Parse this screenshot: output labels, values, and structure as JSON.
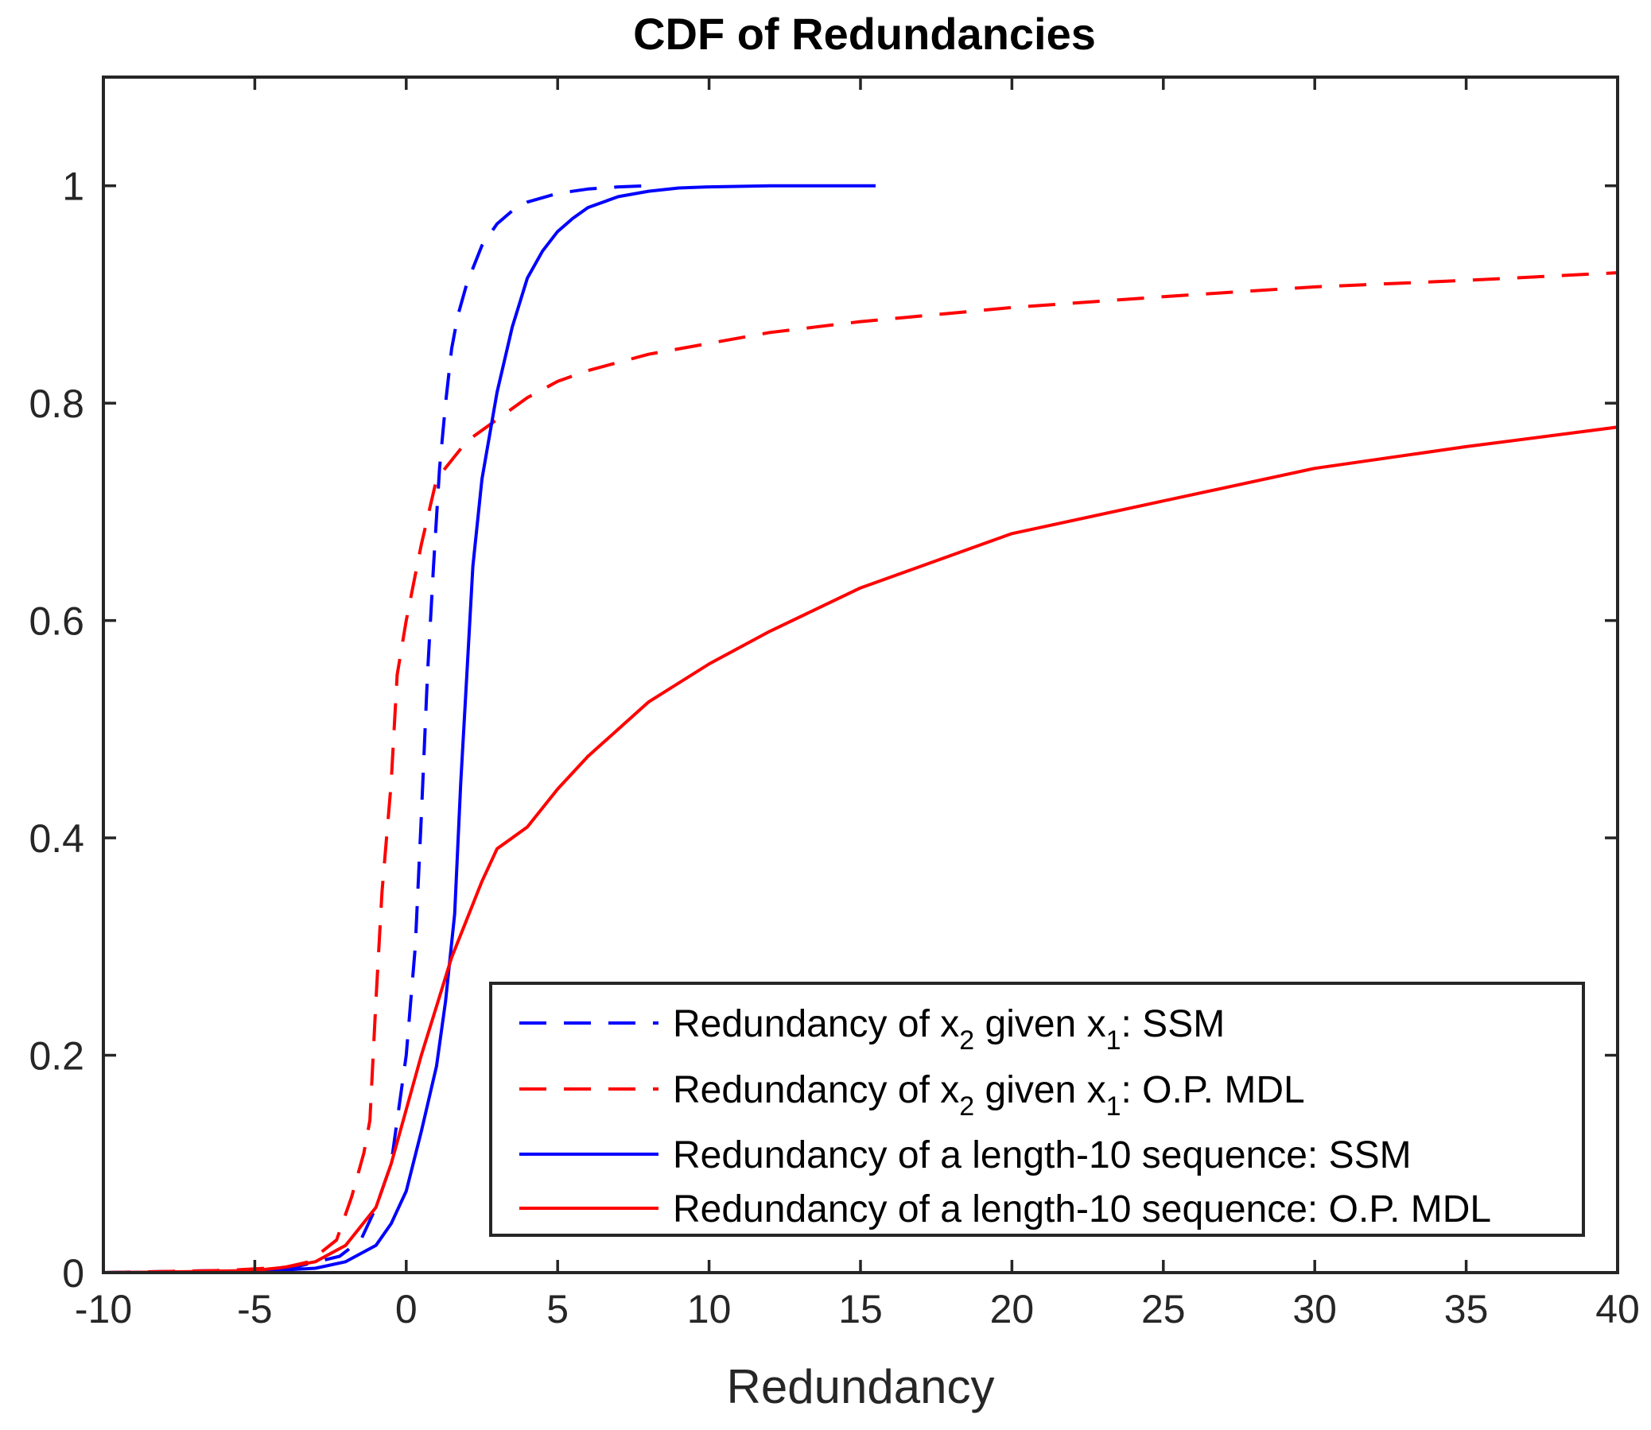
{
  "chart_data": {
    "type": "line",
    "title": "CDF of Redundancies",
    "xlabel": "Redundancy",
    "ylabel": "",
    "xlim": [
      -10,
      40
    ],
    "ylim": [
      0,
      1.1
    ],
    "xticks": [
      -10,
      -5,
      0,
      5,
      10,
      15,
      20,
      25,
      30,
      35,
      40
    ],
    "yticks": [
      0,
      0.2,
      0.4,
      0.6,
      0.8,
      1
    ],
    "xtick_labels": [
      "-10",
      "-5",
      "0",
      "5",
      "10",
      "15",
      "20",
      "25",
      "30",
      "35",
      "40"
    ],
    "ytick_labels": [
      "0",
      "0.2",
      "0.4",
      "0.6",
      "0.8",
      "1"
    ],
    "grid": false,
    "legend_position": "bottom-right",
    "series": [
      {
        "name": "Redundancy of x2 given x1: SSM",
        "legend_parts": [
          "Redundancy of x",
          "2",
          " given x",
          "1",
          ": SSM"
        ],
        "color": "#0000ff",
        "style": "dashed",
        "x": [
          -10,
          -4,
          -2.2,
          -1.5,
          -1.0,
          -0.5,
          0,
          0.3,
          0.5,
          0.7,
          0.9,
          1.1,
          1.3,
          1.5,
          1.7,
          2.0,
          2.5,
          3.0,
          3.5,
          4.0,
          5.0,
          6.0,
          7.0,
          8.0
        ],
        "y": [
          0,
          0.003,
          0.015,
          0.03,
          0.06,
          0.1,
          0.2,
          0.3,
          0.42,
          0.55,
          0.65,
          0.74,
          0.8,
          0.85,
          0.88,
          0.91,
          0.945,
          0.965,
          0.977,
          0.985,
          0.993,
          0.997,
          0.999,
          1.0
        ]
      },
      {
        "name": "Redundancy of x2 given x1: O.P. MDL",
        "legend_parts": [
          "Redundancy of x",
          "2",
          " given x",
          "1",
          ": O.P. MDL"
        ],
        "color": "#ff0000",
        "style": "dashed",
        "x": [
          -10,
          -6,
          -4,
          -3.2,
          -2.3,
          -1.8,
          -1.4,
          -1.2,
          -1.0,
          -0.8,
          -0.5,
          -0.3,
          0,
          0.5,
          1.0,
          2.0,
          3.0,
          4.0,
          5.0,
          6.0,
          8.0,
          10.0,
          12.0,
          15.0,
          20.0,
          25.0,
          30.0,
          35.0,
          40.0
        ],
        "y": [
          0,
          0.002,
          0.005,
          0.01,
          0.03,
          0.07,
          0.11,
          0.14,
          0.25,
          0.35,
          0.45,
          0.55,
          0.6,
          0.67,
          0.73,
          0.765,
          0.785,
          0.805,
          0.82,
          0.83,
          0.845,
          0.855,
          0.865,
          0.875,
          0.888,
          0.898,
          0.907,
          0.913,
          0.92
        ]
      },
      {
        "name": "Redundancy of a length-10 sequence: SSM",
        "legend_parts": [
          "Redundancy of a length-10 sequence: SSM"
        ],
        "color": "#0000ff",
        "style": "solid",
        "x": [
          -10,
          -5,
          -3,
          -2,
          -1.0,
          -0.5,
          0,
          0.5,
          1.0,
          1.3,
          1.6,
          1.8,
          2.0,
          2.2,
          2.5,
          3.0,
          3.5,
          4.0,
          4.5,
          5.0,
          5.5,
          6.0,
          7.0,
          8.0,
          9.0,
          10.0,
          12.0,
          15.5
        ],
        "y": [
          0,
          0.001,
          0.004,
          0.01,
          0.025,
          0.045,
          0.075,
          0.13,
          0.19,
          0.25,
          0.33,
          0.45,
          0.55,
          0.65,
          0.73,
          0.81,
          0.87,
          0.915,
          0.94,
          0.958,
          0.97,
          0.98,
          0.99,
          0.995,
          0.998,
          0.999,
          1.0,
          1.0
        ]
      },
      {
        "name": "Redundancy of a length-10 sequence: O.P. MDL",
        "legend_parts": [
          "Redundancy of a length-10 sequence: O.P. MDL"
        ],
        "color": "#ff0000",
        "style": "solid",
        "x": [
          -10,
          -8,
          -5,
          -4,
          -3,
          -2,
          -1,
          -0.5,
          0,
          0.5,
          1.0,
          1.5,
          2.0,
          2.5,
          3.0,
          4.0,
          5.0,
          6.0,
          8.0,
          10.0,
          12.0,
          15.0,
          18.0,
          20.0,
          25.0,
          30.0,
          35.0,
          40.0
        ],
        "y": [
          0,
          0.0005,
          0.002,
          0.005,
          0.01,
          0.025,
          0.06,
          0.1,
          0.15,
          0.2,
          0.245,
          0.29,
          0.325,
          0.36,
          0.39,
          0.41,
          0.445,
          0.475,
          0.525,
          0.56,
          0.59,
          0.63,
          0.66,
          0.68,
          0.71,
          0.74,
          0.76,
          0.778
        ]
      }
    ]
  }
}
